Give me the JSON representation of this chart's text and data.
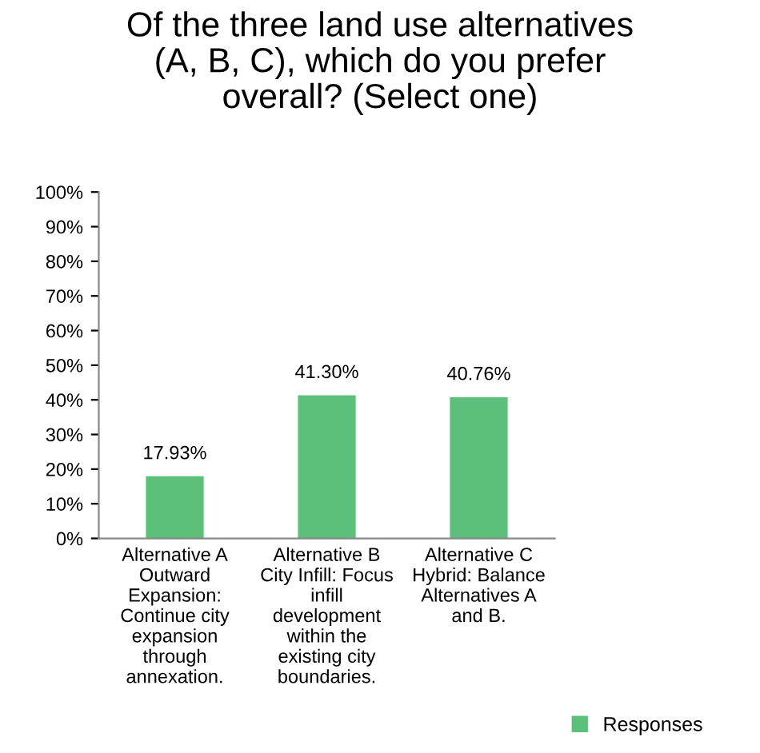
{
  "chart_data": {
    "type": "bar",
    "title": "Of the three land use alternatives\n(A, B, C), which do you prefer\noverall? (Select one)",
    "categories": [
      "Alternative A\nOutward\nExpansion:\nContinue city\nexpansion\nthrough\nannexation.",
      "Alternative B\nCity Infill: Focus\ninfill\ndevelopment\nwithin the\nexisting city\nboundaries.",
      "Alternative C\nHybrid: Balance\nAlternatives A\nand B."
    ],
    "series": [
      {
        "name": "Responses",
        "color": "#5cbf7a",
        "values": [
          17.93,
          41.3,
          40.76
        ],
        "value_labels": [
          "17.93%",
          "41.30%",
          "40.76%"
        ]
      }
    ],
    "ylim": [
      0,
      100
    ],
    "yticks": [
      {
        "value": 0,
        "label": "0%"
      },
      {
        "value": 10,
        "label": "10%"
      },
      {
        "value": 20,
        "label": "20%"
      },
      {
        "value": 30,
        "label": "30%"
      },
      {
        "value": 40,
        "label": "40%"
      },
      {
        "value": 50,
        "label": "50%"
      },
      {
        "value": 60,
        "label": "60%"
      },
      {
        "value": 70,
        "label": "70%"
      },
      {
        "value": 80,
        "label": "80%"
      },
      {
        "value": 90,
        "label": "90%"
      },
      {
        "value": 100,
        "label": "100%"
      }
    ],
    "grid": false,
    "legend": "bottom right"
  }
}
